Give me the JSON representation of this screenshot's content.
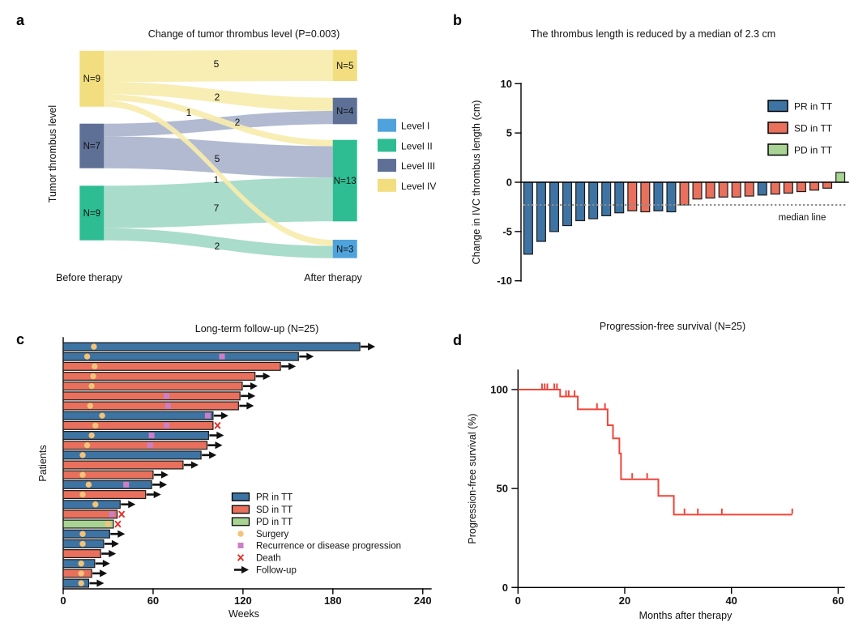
{
  "chart_data": [
    {
      "id": "a",
      "type": "sankey",
      "panel_label": "a",
      "title": "Change of tumor thrombus level (P=0.003)",
      "ylabel": "Tumor thrombus level",
      "col_labels": [
        "Before therapy",
        "After therapy"
      ],
      "legend": [
        {
          "label": "Level I",
          "color": "#4FA3DC"
        },
        {
          "label": "Level II",
          "color": "#2EBD92"
        },
        {
          "label": "Level III",
          "color": "#5E7096"
        },
        {
          "label": "Level IV",
          "color": "#F2DE7E"
        }
      ],
      "before_nodes": [
        {
          "level": "Level IV",
          "n": 9,
          "label": "N=9"
        },
        {
          "level": "Level III",
          "n": 7,
          "label": "N=7"
        },
        {
          "level": "Level II",
          "n": 9,
          "label": "N=9"
        }
      ],
      "after_nodes": [
        {
          "level": "Level IV",
          "n": 5,
          "label": "N=5"
        },
        {
          "level": "Level III",
          "n": 4,
          "label": "N=4"
        },
        {
          "level": "Level II",
          "n": 13,
          "label": "N=13"
        },
        {
          "level": "Level I",
          "n": 3,
          "label": "N=3"
        }
      ],
      "flows": [
        {
          "from": "Level IV",
          "to": "Level IV",
          "value": 5
        },
        {
          "from": "Level IV",
          "to": "Level III",
          "value": 2
        },
        {
          "from": "Level IV",
          "to": "Level II",
          "value": 1
        },
        {
          "from": "Level IV",
          "to": "Level I",
          "value": 1
        },
        {
          "from": "Level III",
          "to": "Level III",
          "value": 2
        },
        {
          "from": "Level III",
          "to": "Level II",
          "value": 5
        },
        {
          "from": "Level II",
          "to": "Level II",
          "value": 7
        },
        {
          "from": "Level II",
          "to": "Level I",
          "value": 2
        }
      ]
    },
    {
      "id": "b",
      "type": "bar",
      "subtype": "waterfall",
      "panel_label": "b",
      "title": "The thrombus length is reduced by a median of 2.3 cm",
      "ylabel": "Change in IVC thrombus length (cm)",
      "ylim": [
        -10,
        10
      ],
      "yticks": [
        10,
        5,
        0,
        -5,
        -10
      ],
      "median_value": -2.3,
      "median_label": "median line",
      "legend": [
        {
          "label": "PR in TT",
          "color": "#3E74A4"
        },
        {
          "label": "SD in TT",
          "color": "#E8705C"
        },
        {
          "label": "PD in TT",
          "color": "#A9D393"
        }
      ],
      "bars": [
        {
          "group": "PR",
          "value": -7.3
        },
        {
          "group": "PR",
          "value": -6.0
        },
        {
          "group": "PR",
          "value": -5.0
        },
        {
          "group": "PR",
          "value": -4.4
        },
        {
          "group": "PR",
          "value": -3.9
        },
        {
          "group": "PR",
          "value": -3.7
        },
        {
          "group": "PR",
          "value": -3.4
        },
        {
          "group": "PR",
          "value": -3.1
        },
        {
          "group": "SD",
          "value": -2.9
        },
        {
          "group": "SD",
          "value": -3.0
        },
        {
          "group": "PR",
          "value": -2.9
        },
        {
          "group": "PR",
          "value": -3.0
        },
        {
          "group": "SD",
          "value": -2.3
        },
        {
          "group": "SD",
          "value": -1.7
        },
        {
          "group": "SD",
          "value": -1.6
        },
        {
          "group": "SD",
          "value": -1.5
        },
        {
          "group": "SD",
          "value": -1.5
        },
        {
          "group": "SD",
          "value": -1.4
        },
        {
          "group": "PR",
          "value": -1.3
        },
        {
          "group": "SD",
          "value": -1.2
        },
        {
          "group": "SD",
          "value": -1.1
        },
        {
          "group": "SD",
          "value": -0.95
        },
        {
          "group": "SD",
          "value": -0.8
        },
        {
          "group": "SD",
          "value": -0.6
        },
        {
          "group": "PD",
          "value": 1.0
        }
      ]
    },
    {
      "id": "c",
      "type": "swimmer",
      "panel_label": "c",
      "title": "Long-term follow-up (N=25)",
      "xlabel": "Weeks",
      "ylabel": "Patients",
      "xticks": [
        0,
        60,
        120,
        180,
        240
      ],
      "xlim": [
        0,
        245
      ],
      "legend": [
        {
          "label": "PR in TT",
          "marker": "rect",
          "color": "#3E74A4"
        },
        {
          "label": "SD in TT",
          "marker": "rect",
          "color": "#E8705C"
        },
        {
          "label": "PD in TT",
          "marker": "rect",
          "color": "#A9D393"
        },
        {
          "label": "Surgery",
          "marker": "dot",
          "color": "#F2C379"
        },
        {
          "label": "Recurrence or disease progression",
          "marker": "square",
          "color": "#CC7FC4"
        },
        {
          "label": "Death",
          "marker": "x",
          "color": "#E0302A"
        },
        {
          "label": "Follow-up",
          "marker": "arrow",
          "color": "#111111"
        }
      ],
      "patients": [
        {
          "response": "PR",
          "end": 198,
          "surgery": 20.5,
          "recurrence": null,
          "death": null,
          "followup": true
        },
        {
          "response": "PR",
          "end": 157,
          "surgery": 16,
          "recurrence": 106,
          "death": null,
          "followup": true
        },
        {
          "response": "SD",
          "end": 145,
          "surgery": 21,
          "recurrence": null,
          "death": null,
          "followup": true
        },
        {
          "response": "SD",
          "end": 128,
          "surgery": 20,
          "recurrence": null,
          "death": null,
          "followup": true
        },
        {
          "response": "SD",
          "end": 119.5,
          "surgery": 19,
          "recurrence": null,
          "death": null,
          "followup": true
        },
        {
          "response": "SD",
          "end": 118,
          "surgery": null,
          "recurrence": 69,
          "death": null,
          "followup": true
        },
        {
          "response": "SD",
          "end": 117,
          "surgery": 18,
          "recurrence": 70,
          "death": null,
          "followup": true
        },
        {
          "response": "PR",
          "end": 100,
          "surgery": 26,
          "recurrence": 96.5,
          "death": null,
          "followup": true
        },
        {
          "response": "SD",
          "end": 100,
          "surgery": 21.5,
          "recurrence": 69,
          "death": 103,
          "followup": false
        },
        {
          "response": "PR",
          "end": 97,
          "surgery": 19,
          "recurrence": 59,
          "death": null,
          "followup": true
        },
        {
          "response": "SD",
          "end": 96,
          "surgery": 16,
          "recurrence": 58,
          "death": null,
          "followup": true
        },
        {
          "response": "PR",
          "end": 92,
          "surgery": 13,
          "recurrence": null,
          "death": null,
          "followup": true
        },
        {
          "response": "SD",
          "end": 80,
          "surgery": null,
          "recurrence": null,
          "death": null,
          "followup": true
        },
        {
          "response": "SD",
          "end": 60,
          "surgery": 13,
          "recurrence": null,
          "death": null,
          "followup": true
        },
        {
          "response": "PR",
          "end": 59,
          "surgery": 17,
          "recurrence": 42,
          "death": null,
          "followup": true
        },
        {
          "response": "SD",
          "end": 55,
          "surgery": 13,
          "recurrence": null,
          "death": null,
          "followup": true
        },
        {
          "response": "PR",
          "end": 38,
          "surgery": 21.5,
          "recurrence": null,
          "death": null,
          "followup": true
        },
        {
          "response": "SD",
          "end": 36,
          "surgery": null,
          "recurrence": 32.5,
          "death": 39,
          "followup": false
        },
        {
          "response": "PD",
          "end": 33.5,
          "surgery": 30,
          "recurrence": null,
          "death": 36.5,
          "followup": false
        },
        {
          "response": "PR",
          "end": 31,
          "surgery": 13,
          "recurrence": null,
          "death": null,
          "followup": true
        },
        {
          "response": "PR",
          "end": 27,
          "surgery": 13,
          "recurrence": null,
          "death": null,
          "followup": true
        },
        {
          "response": "SD",
          "end": 25,
          "surgery": null,
          "recurrence": null,
          "death": null,
          "followup": true
        },
        {
          "response": "PR",
          "end": 21,
          "surgery": 12,
          "recurrence": null,
          "death": null,
          "followup": true
        },
        {
          "response": "SD",
          "end": 19,
          "surgery": 12,
          "recurrence": null,
          "death": null,
          "followup": true
        },
        {
          "response": "PR",
          "end": 17,
          "surgery": 12,
          "recurrence": null,
          "death": null,
          "followup": true
        }
      ]
    },
    {
      "id": "d",
      "type": "line",
      "subtype": "kaplan-meier",
      "panel_label": "d",
      "title": "Progression-free survival (N=25)",
      "xlabel": "Months after therapy",
      "ylabel": "Progression-free survival (%)",
      "xticks": [
        0,
        20,
        40,
        60
      ],
      "yticks": [
        0,
        50,
        100
      ],
      "xlim": [
        0,
        60
      ],
      "ylim": [
        0,
        110
      ],
      "color": "#F0453A",
      "steps": [
        [
          0,
          100
        ],
        [
          7.9,
          100
        ],
        [
          7.9,
          96.5
        ],
        [
          11.2,
          96.5
        ],
        [
          11.2,
          90
        ],
        [
          16.8,
          90
        ],
        [
          16.8,
          82
        ],
        [
          17.8,
          82
        ],
        [
          17.8,
          75.3
        ],
        [
          19.0,
          75.3
        ],
        [
          19.0,
          67.7
        ],
        [
          19.3,
          67.7
        ],
        [
          19.3,
          54.7
        ],
        [
          26.3,
          54.7
        ],
        [
          26.3,
          46.3
        ],
        [
          29.2,
          46.3
        ],
        [
          29.2,
          36.8
        ],
        [
          51.4,
          36.8
        ]
      ],
      "censors": [
        [
          4.5,
          100
        ],
        [
          5.0,
          100
        ],
        [
          5.5,
          100
        ],
        [
          6.8,
          100
        ],
        [
          7.3,
          100
        ],
        [
          9.0,
          96.5
        ],
        [
          9.5,
          96.5
        ],
        [
          10.6,
          96.5
        ],
        [
          14.8,
          90
        ],
        [
          16.3,
          90
        ],
        [
          21.4,
          54.7
        ],
        [
          24.2,
          54.7
        ],
        [
          31.2,
          36.8
        ],
        [
          33.7,
          36.8
        ],
        [
          38.2,
          36.8
        ],
        [
          51.4,
          36.8
        ]
      ]
    }
  ]
}
